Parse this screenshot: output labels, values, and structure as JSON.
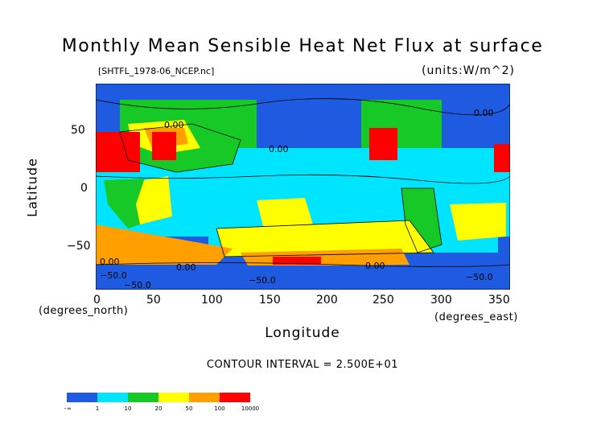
{
  "title": "Monthly Mean Sensible Heat Net Flux at surface",
  "file_name": "[SHTFL_1978-06_NCEP.nc]",
  "units": "(units:W/m^2)",
  "x_axis": {
    "label": "Longitude",
    "units": "(degrees_east)",
    "ticks": [
      "0",
      "50",
      "100",
      "150",
      "200",
      "250",
      "300",
      "350"
    ]
  },
  "y_axis": {
    "label": "Latitude",
    "units": "(degrees_north)",
    "ticks": [
      "50",
      "0",
      "−50"
    ]
  },
  "contour_interval": "CONTOUR INTERVAL = 2.500E+01",
  "contour_labels": [
    "0.00",
    "0.00",
    "0.00",
    "0.00",
    "0.00",
    "0.00",
    "−50.0",
    "−50.0",
    "−50.0",
    "−50.0"
  ],
  "legend": {
    "labels": [
      "−∞",
      "1",
      "10",
      "20",
      "50",
      "100",
      "10000"
    ],
    "colors": [
      "#1f5be0",
      "#00e5ff",
      "#17c927",
      "#ffff00",
      "#ff9f00",
      "#ff0000"
    ]
  },
  "colors": {
    "low": "#1f5be0",
    "mid_low": "#00e5ff",
    "mid": "#17c927",
    "mid_high": "#ffff00",
    "high": "#ff9f00",
    "max": "#ff0000",
    "contour": "#000000"
  }
}
